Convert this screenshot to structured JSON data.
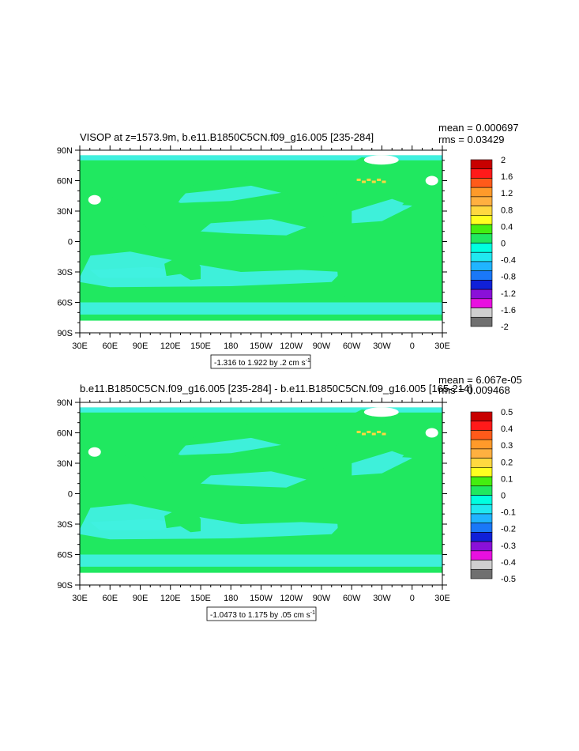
{
  "chart_data": [
    {
      "type": "heatmap",
      "title": "VISOP at z=1573.9m, b.e11.B1850C5CN.f09_g16.005 [235-284]",
      "stats": [
        "mean = 0.000697",
        "rms = 0.03429"
      ],
      "x_ticks": [
        "30E",
        "60E",
        "90E",
        "120E",
        "150E",
        "180",
        "150W",
        "120W",
        "90W",
        "60W",
        "30W",
        "0",
        "30E"
      ],
      "y_ticks": [
        "90N",
        "60N",
        "30N",
        "0",
        "30S",
        "60S",
        "90S"
      ],
      "range_label": "-1.316 to 1.922 by .2 cm s",
      "range_unit_exp": "-1",
      "colorbar": {
        "labels": [
          "2",
          "1.6",
          "1.2",
          "0.8",
          "0.4",
          "0",
          "-0.4",
          "-0.8",
          "-1.2",
          "-1.6",
          "-2"
        ],
        "colors": [
          "#c80000",
          "#ff1a1a",
          "#ff5a1a",
          "#ff9a2a",
          "#ffb040",
          "#ffd840",
          "#ffff20",
          "#44ee10",
          "#20e860",
          "#00ffe0",
          "#20e8f0",
          "#20b4ff",
          "#1a78f8",
          "#1020d8",
          "#8a10d8",
          "#e810e0",
          "#cfcfcf",
          "#707070"
        ]
      },
      "field_colors": {
        "ocean": "#20e860",
        "anomaly": "#40f0e0",
        "land": "#ffffff",
        "hotspot": "#ffd840"
      }
    },
    {
      "type": "heatmap",
      "title": "b.e11.B1850C5CN.f09_g16.005 [235-284] - b.e11.B1850C5CN.f09_g16.005 [165-214]",
      "stats": [
        "mean = 6.067e-05",
        "rms = 0.009468"
      ],
      "x_ticks": [
        "30E",
        "60E",
        "90E",
        "120E",
        "150E",
        "180",
        "150W",
        "120W",
        "90W",
        "60W",
        "30W",
        "0",
        "30E"
      ],
      "y_ticks": [
        "90N",
        "60N",
        "30N",
        "0",
        "30S",
        "60S",
        "90S"
      ],
      "range_label": "-1.0473 to 1.175 by .05 cm s",
      "range_unit_exp": "-1",
      "colorbar": {
        "labels": [
          "0.5",
          "0.4",
          "0.3",
          "0.2",
          "0.1",
          "0",
          "-0.1",
          "-0.2",
          "-0.3",
          "-0.4",
          "-0.5"
        ],
        "colors": [
          "#c80000",
          "#ff1a1a",
          "#ff5a1a",
          "#ff9a2a",
          "#ffb040",
          "#ffd840",
          "#ffff20",
          "#44ee10",
          "#20e860",
          "#00ffe0",
          "#20e8f0",
          "#20b4ff",
          "#1a78f8",
          "#1020d8",
          "#8a10d8",
          "#e810e0",
          "#cfcfcf",
          "#707070"
        ]
      },
      "field_colors": {
        "ocean": "#20e860",
        "anomaly": "#40f0e0",
        "land": "#ffffff",
        "hotspot": "#ffd840"
      }
    }
  ]
}
